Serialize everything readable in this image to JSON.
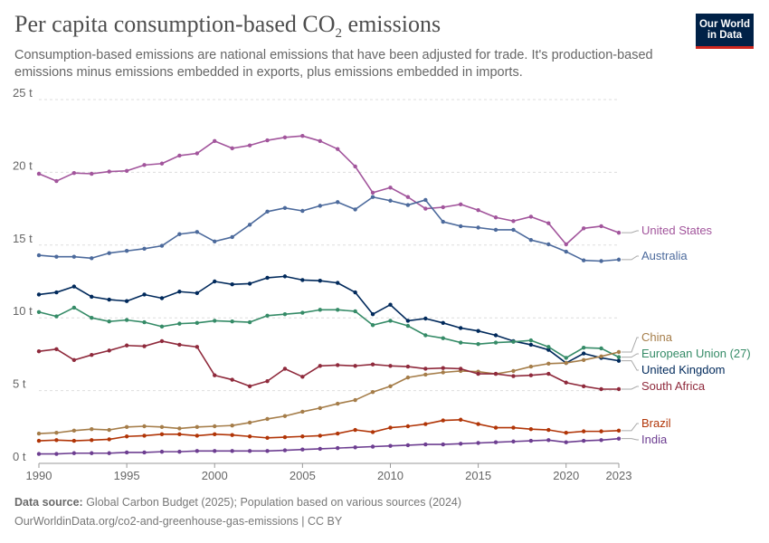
{
  "header": {
    "title_main": "Per capita consumption-based CO",
    "title_sub": "2",
    "title_end": " emissions",
    "subtitle": "Consumption-based emissions are national emissions that have been adjusted for trade. It's production-based emissions minus emissions embedded in exports, plus emissions embedded in imports.",
    "logo_line1": "Our World",
    "logo_line2": "in Data"
  },
  "footer": {
    "source_label": "Data source:",
    "source_text": " Global Carbon Budget (2025); Population based on various sources (2024)",
    "url_text": "OurWorldinData.org/co2-and-greenhouse-gas-emissions | CC BY"
  },
  "chart_data": {
    "type": "line",
    "title": "Per capita consumption-based CO₂ emissions",
    "xlim": [
      1990,
      2023
    ],
    "ylim": [
      0,
      25
    ],
    "x_ticks": [
      1990,
      1995,
      2000,
      2005,
      2010,
      2015,
      2020,
      2023
    ],
    "y_ticks": [
      0,
      5,
      10,
      15,
      20,
      25
    ],
    "y_tick_labels": [
      "0 t",
      "5 t",
      "10 t",
      "15 t",
      "20 t",
      "25 t"
    ],
    "grid": "horizontal dashed",
    "legend": "right, inline labels",
    "x": [
      1990,
      1991,
      1992,
      1993,
      1994,
      1995,
      1996,
      1997,
      1998,
      1999,
      2000,
      2001,
      2002,
      2003,
      2004,
      2005,
      2006,
      2007,
      2008,
      2009,
      2010,
      2011,
      2012,
      2013,
      2014,
      2015,
      2016,
      2017,
      2018,
      2019,
      2020,
      2021,
      2022,
      2023
    ],
    "series": [
      {
        "name": "United States",
        "color": "#a2559c",
        "values": [
          19.9,
          19.4,
          19.95,
          19.9,
          20.05,
          20.1,
          20.5,
          20.6,
          21.15,
          21.3,
          22.15,
          21.65,
          21.85,
          22.2,
          22.4,
          22.5,
          22.15,
          21.6,
          20.4,
          18.6,
          18.95,
          18.3,
          17.5,
          17.6,
          17.8,
          17.4,
          16.9,
          16.65,
          16.95,
          16.5,
          15.05,
          16.15,
          16.3,
          15.85
        ]
      },
      {
        "name": "Australia",
        "color": "#4c6a9c",
        "values": [
          14.3,
          14.2,
          14.2,
          14.1,
          14.45,
          14.6,
          14.75,
          14.95,
          15.75,
          15.9,
          15.25,
          15.55,
          16.4,
          17.3,
          17.55,
          17.35,
          17.7,
          17.95,
          17.45,
          18.3,
          18.05,
          17.75,
          18.1,
          16.6,
          16.3,
          16.2,
          16.05,
          16.05,
          15.35,
          15.05,
          14.55,
          13.95,
          13.9,
          14.0
        ]
      },
      {
        "name": "United Kingdom",
        "color": "#00295b",
        "values": [
          11.6,
          11.75,
          12.15,
          11.45,
          11.25,
          11.15,
          11.6,
          11.35,
          11.8,
          11.7,
          12.5,
          12.3,
          12.35,
          12.75,
          12.85,
          12.6,
          12.55,
          12.4,
          11.75,
          10.25,
          10.9,
          9.8,
          9.95,
          9.65,
          9.3,
          9.1,
          8.8,
          8.4,
          8.15,
          7.8,
          6.9,
          7.55,
          7.25,
          7.05
        ]
      },
      {
        "name": "European Union (27)",
        "color": "#358b67",
        "values": [
          10.4,
          10.1,
          10.7,
          10.0,
          9.75,
          9.85,
          9.7,
          9.4,
          9.6,
          9.65,
          9.8,
          9.75,
          9.7,
          10.15,
          10.25,
          10.35,
          10.55,
          10.55,
          10.45,
          9.5,
          9.8,
          9.45,
          8.8,
          8.6,
          8.3,
          8.2,
          8.3,
          8.35,
          8.45,
          8.0,
          7.25,
          7.95,
          7.9,
          7.3
        ]
      },
      {
        "name": "China",
        "color": "#a57d49",
        "values": [
          2.05,
          2.1,
          2.25,
          2.35,
          2.3,
          2.5,
          2.55,
          2.5,
          2.4,
          2.5,
          2.55,
          2.6,
          2.8,
          3.05,
          3.25,
          3.55,
          3.8,
          4.1,
          4.35,
          4.9,
          5.3,
          5.9,
          6.1,
          6.25,
          6.35,
          6.3,
          6.15,
          6.35,
          6.65,
          6.85,
          6.9,
          7.1,
          7.35,
          7.65
        ]
      },
      {
        "name": "South Africa",
        "color": "#8f2a3c",
        "values": [
          7.7,
          7.85,
          7.1,
          7.45,
          7.75,
          8.1,
          8.05,
          8.4,
          8.15,
          8.0,
          6.05,
          5.75,
          5.3,
          5.65,
          6.5,
          5.95,
          6.7,
          6.75,
          6.7,
          6.8,
          6.7,
          6.65,
          6.5,
          6.55,
          6.5,
          6.15,
          6.15,
          6.0,
          6.05,
          6.15,
          5.55,
          5.3,
          5.1,
          5.1
        ]
      },
      {
        "name": "Brazil",
        "color": "#b13507",
        "values": [
          1.55,
          1.6,
          1.55,
          1.6,
          1.65,
          1.85,
          1.9,
          2.0,
          2.0,
          1.9,
          2.0,
          1.95,
          1.85,
          1.75,
          1.8,
          1.85,
          1.9,
          2.05,
          2.3,
          2.15,
          2.45,
          2.55,
          2.7,
          2.95,
          3.0,
          2.7,
          2.45,
          2.45,
          2.35,
          2.3,
          2.1,
          2.2,
          2.2,
          2.25
        ]
      },
      {
        "name": "India",
        "color": "#6d3e91",
        "values": [
          0.65,
          0.65,
          0.7,
          0.7,
          0.7,
          0.75,
          0.75,
          0.8,
          0.8,
          0.85,
          0.85,
          0.85,
          0.85,
          0.85,
          0.9,
          0.95,
          1.0,
          1.05,
          1.1,
          1.15,
          1.2,
          1.25,
          1.3,
          1.3,
          1.35,
          1.4,
          1.45,
          1.5,
          1.55,
          1.6,
          1.45,
          1.55,
          1.6,
          1.7
        ]
      }
    ]
  }
}
